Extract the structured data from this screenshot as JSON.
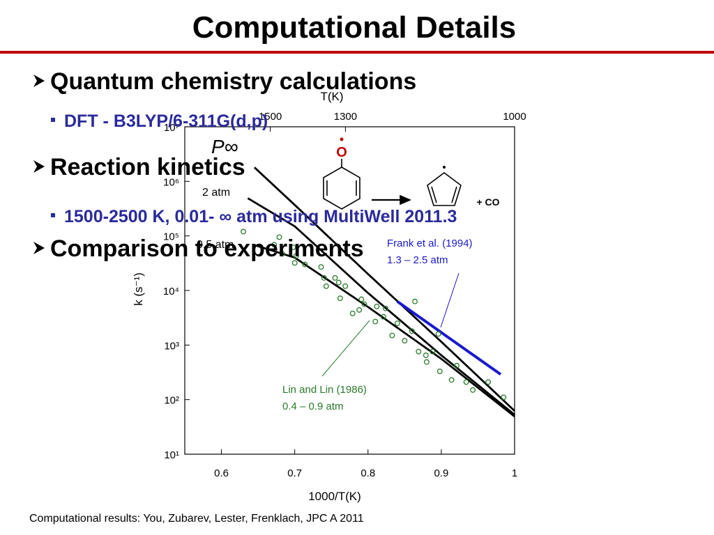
{
  "slide": {
    "title": "Computational Details",
    "bullets": [
      {
        "text": "Quantum chemistry calculations",
        "sub": [
          "DFT - B3LYP/6-311G(d,p)"
        ]
      },
      {
        "text": "Reaction kinetics",
        "sub": [
          "1500-2500 K, 0.01- ∞ atm using MultiWell 2011.3"
        ]
      },
      {
        "text": "Comparison to experiments"
      }
    ],
    "footer": "Computational results: You, Zubarev, Lester, Frenklach, JPC A 2011"
  },
  "chart_data": {
    "type": "line",
    "x_label": "1000/T(K)",
    "y_label": "k (s⁻¹)",
    "top_label": "T(K)",
    "xlim": [
      0.55,
      1.0
    ],
    "xticks": [
      0.6,
      0.7,
      0.8,
      0.9,
      1
    ],
    "log_y": true,
    "ylim": [
      10,
      10000000
    ],
    "yticks": [
      {
        "value": 10,
        "label": "10¹"
      },
      {
        "value": 100,
        "label": "10²"
      },
      {
        "value": 1000,
        "label": "10³"
      },
      {
        "value": 10000,
        "label": "10⁴"
      },
      {
        "value": 100000,
        "label": "10⁵"
      },
      {
        "value": 1000000,
        "label": "10⁶"
      },
      {
        "value": 10000000,
        "label": "10⁷"
      }
    ],
    "top_xticks": [
      1500,
      1300,
      1000
    ],
    "grid": false,
    "scheme": {
      "radical": "O",
      "product": "+ CO"
    },
    "series": [
      {
        "name": "P∞",
        "kind": "line",
        "color": "#000000",
        "x": [
          0.645,
          0.7,
          0.8,
          0.9,
          1.0
        ],
        "values": [
          1800000,
          370000,
          20000,
          1150,
          62
        ]
      },
      {
        "name": "2 atm",
        "kind": "line",
        "color": "#000000",
        "x": [
          0.636,
          0.7,
          0.8,
          0.9,
          1.0
        ],
        "values": [
          490000,
          150000,
          9000,
          650,
          53
        ]
      },
      {
        "name": "0.5 atm",
        "kind": "line",
        "color": "#000000",
        "x": [
          0.645,
          0.7,
          0.8,
          0.9,
          1.0
        ],
        "values": [
          68000,
          40000,
          5000,
          560,
          49
        ]
      },
      {
        "name": "Frank et al. (1994)",
        "conditions": "1.3 – 2.5 atm",
        "kind": "line",
        "color": "#1a1acc",
        "x": [
          0.84,
          0.981
        ],
        "values": [
          6300,
          290
        ]
      },
      {
        "name": "Lin and Lin (1986)",
        "conditions": "0.4 – 0.9 atm",
        "kind": "scatter",
        "color": "#2a7a2a",
        "x": [
          0.63,
          0.672,
          0.679,
          0.683,
          0.698,
          0.702,
          0.7,
          0.714,
          0.736,
          0.74,
          0.743,
          0.755,
          0.76,
          0.762,
          0.769,
          0.779,
          0.791,
          0.795,
          0.81,
          0.812,
          0.824,
          0.833,
          0.84,
          0.85,
          0.86,
          0.864,
          0.869,
          0.879,
          0.88,
          0.888,
          0.896,
          0.898,
          0.914,
          0.921,
          0.934,
          0.943,
          0.964,
          0.985,
          0.821,
          0.788
        ],
        "values": [
          120000,
          69000,
          95000,
          47000,
          62000,
          43000,
          32000,
          30000,
          27000,
          17000,
          12000,
          17000,
          14000,
          7200,
          12000,
          3800,
          6900,
          5600,
          2700,
          5100,
          4700,
          1500,
          2500,
          1200,
          1800,
          6300,
          760,
          650,
          490,
          760,
          1600,
          330,
          230,
          420,
          210,
          150,
          210,
          110,
          3300,
          4400
        ]
      }
    ]
  }
}
